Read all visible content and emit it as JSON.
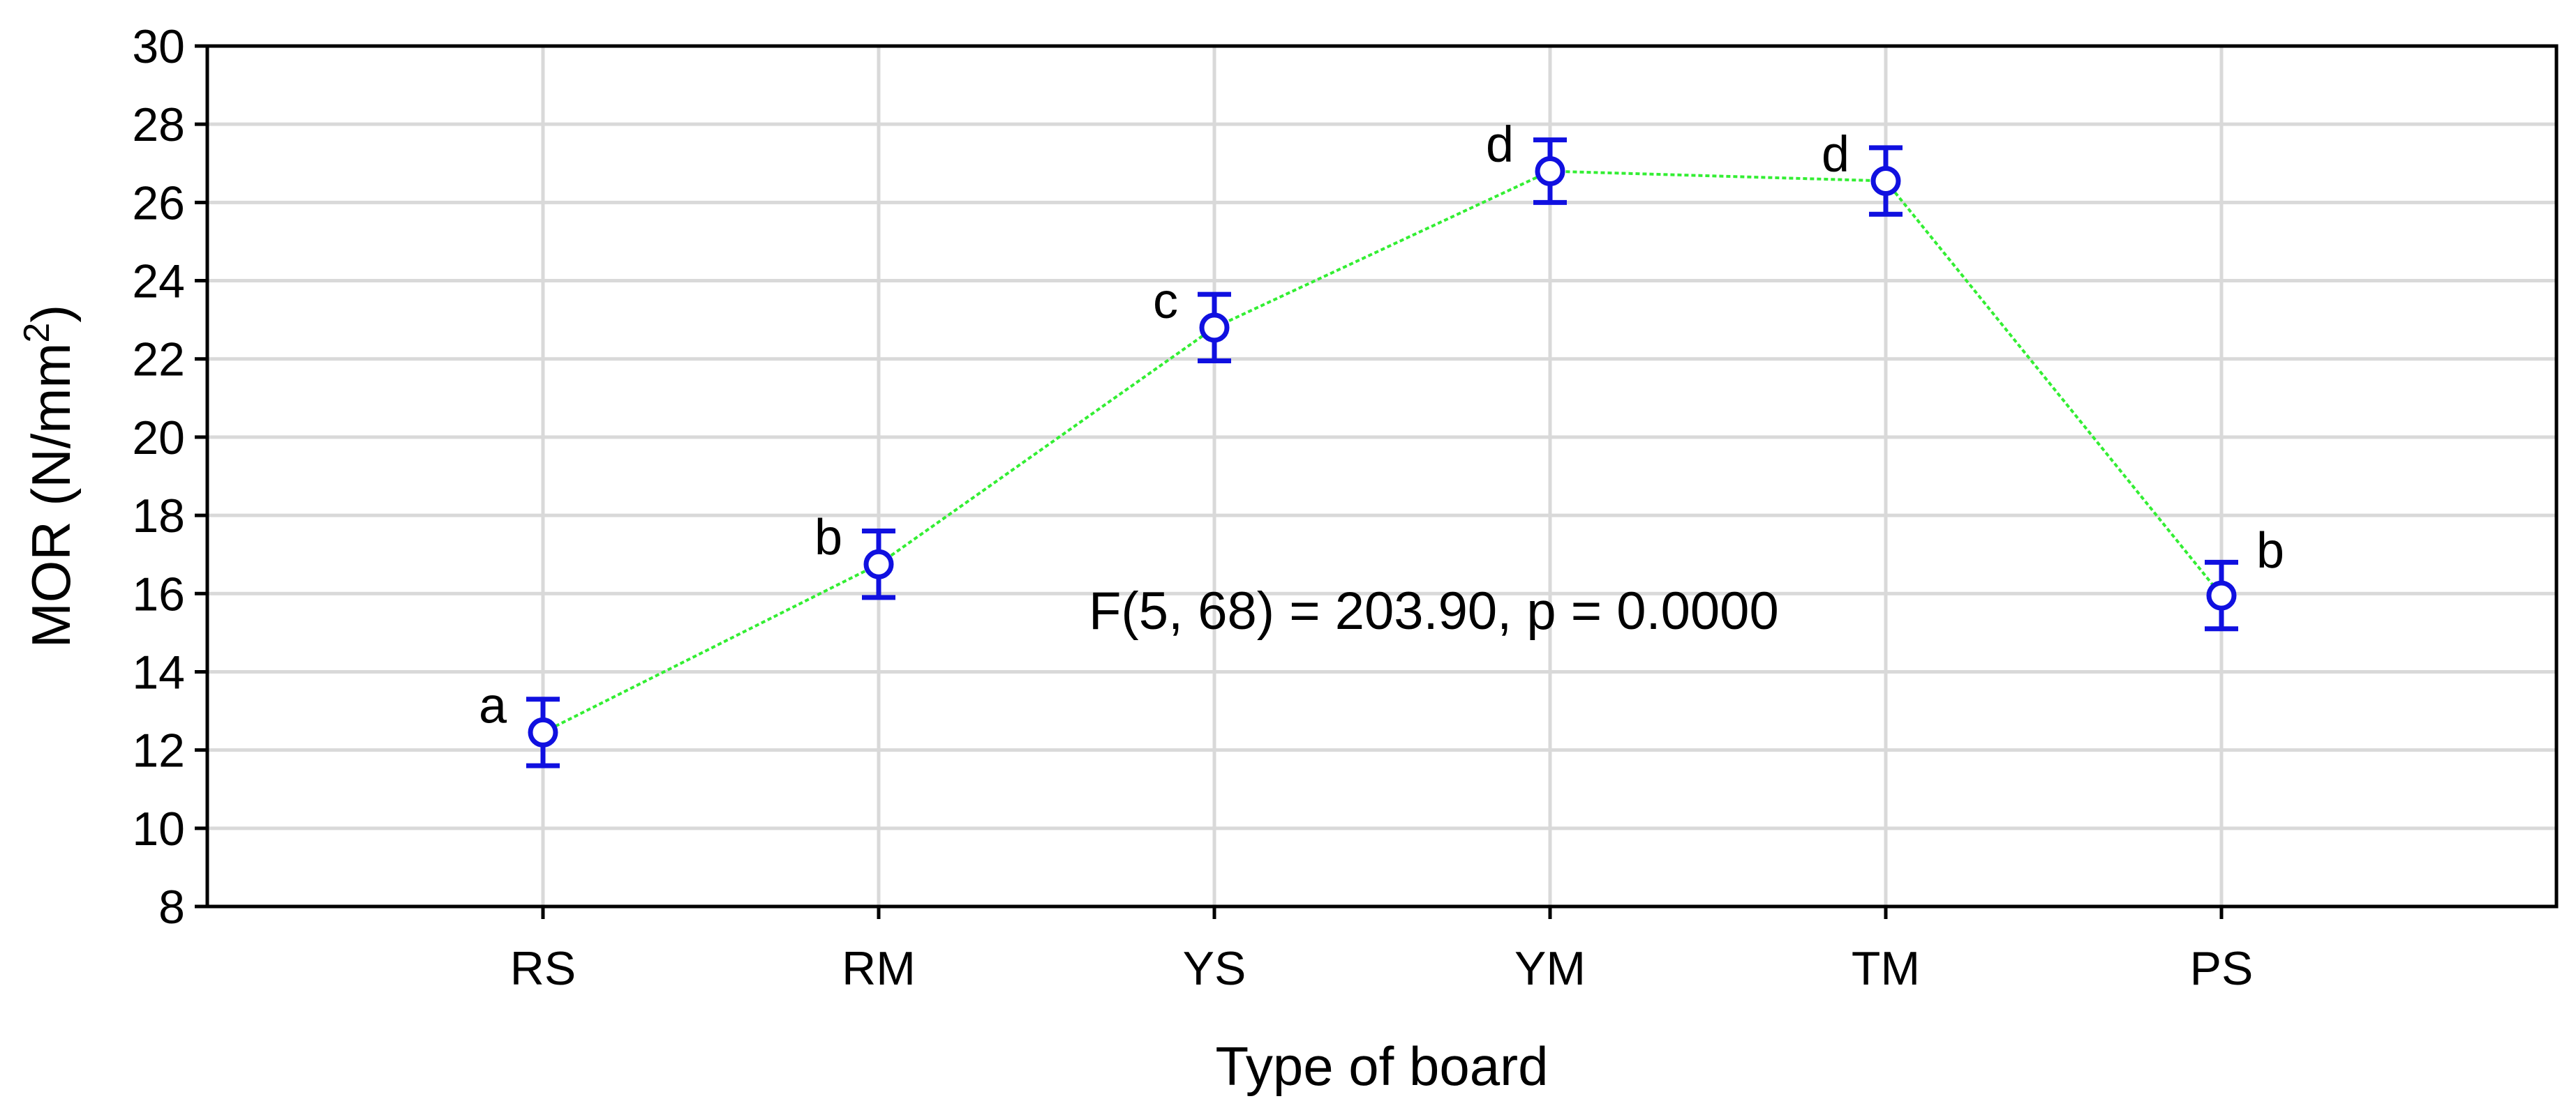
{
  "chart_data": {
    "type": "line",
    "categories": [
      "RS",
      "RM",
      "YS",
      "YM",
      "TM",
      "PS"
    ],
    "series": [
      {
        "values": [
          12.45,
          16.75,
          22.8,
          26.8,
          26.55,
          15.95
        ],
        "error_low": [
          11.6,
          15.9,
          21.95,
          26.0,
          25.7,
          15.1
        ],
        "error_high": [
          13.3,
          17.6,
          23.65,
          27.6,
          27.4,
          16.8
        ],
        "group_letters": [
          "a",
          "b",
          "c",
          "d",
          "d",
          "b"
        ]
      }
    ],
    "xlabel": "Type of board",
    "ylabel": "MOR (N/mm",
    "ylabel_sup": "2",
    "ylabel_close": ")",
    "ylim": [
      8,
      30
    ],
    "yticks": [
      8,
      10,
      12,
      14,
      16,
      18,
      20,
      22,
      24,
      26,
      28,
      30
    ],
    "annotation": "F(5, 68) = 203.90, p = 0.0000",
    "grid": true,
    "colors": {
      "marker": "#1010e0",
      "line": "#33ee33",
      "grid": "#d9d9d9",
      "axis": "#000000"
    }
  }
}
